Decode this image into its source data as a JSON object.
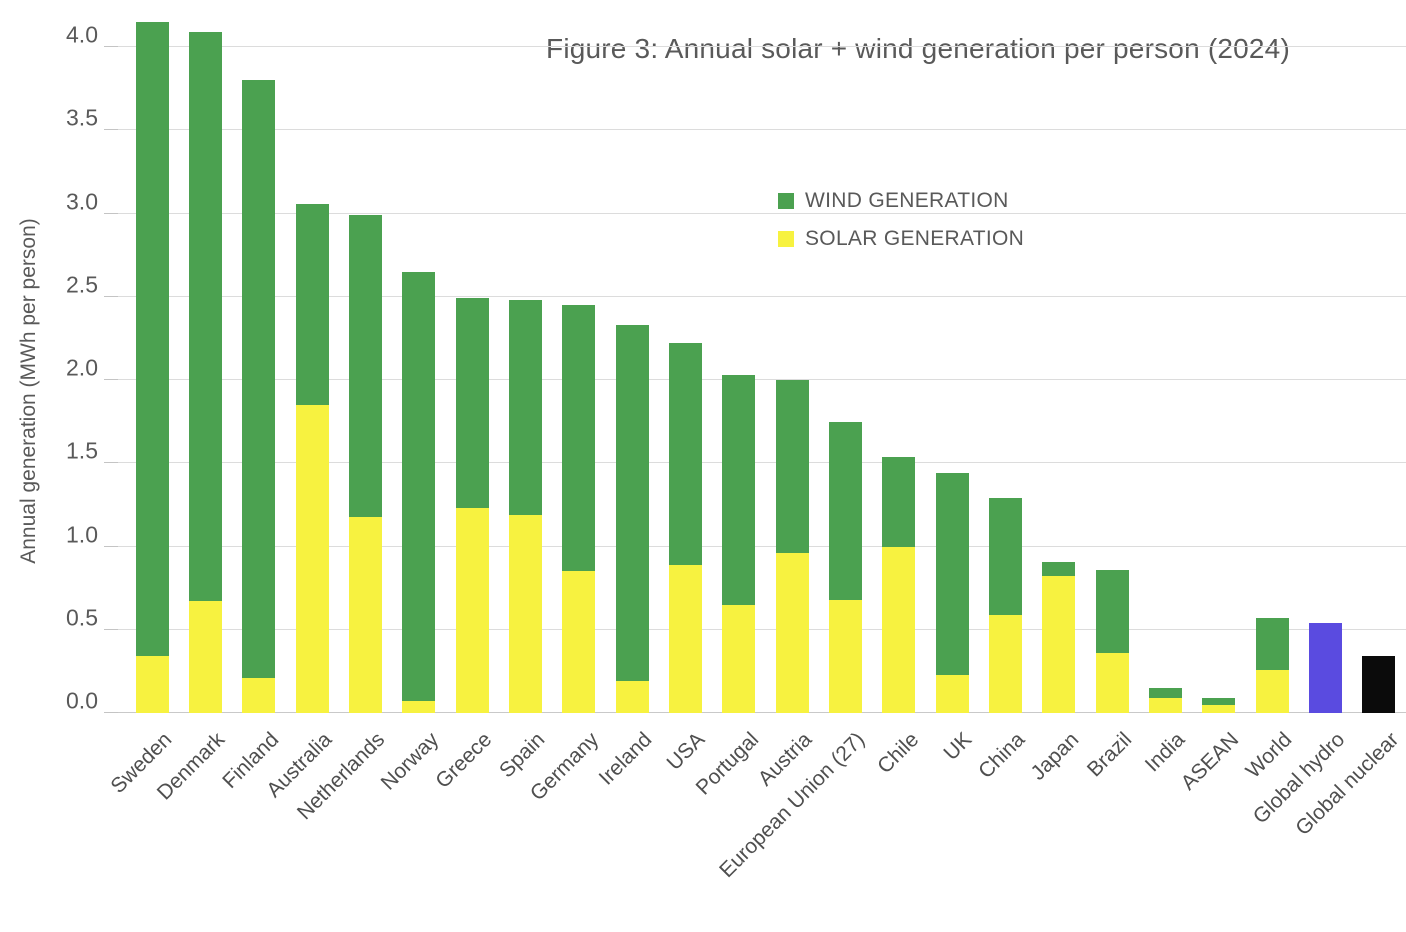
{
  "chart_data": {
    "type": "bar",
    "stacked": true,
    "title": "Figure 3: Annual solar + wind generation per person (2024)",
    "xlabel": "",
    "ylabel": "Annual generation (MWh per person)",
    "ylim": [
      0,
      4.25
    ],
    "grid": true,
    "legend_position": "upper-middle-right",
    "ytick_labels": [
      "0.0",
      "0.5",
      "1.0",
      "1.5",
      "2.0",
      "2.5",
      "3.0",
      "3.5",
      "4.0"
    ],
    "series": [
      {
        "name": "WIND GENERATION",
        "color": "#4BA150"
      },
      {
        "name": "SOLAR GENERATION",
        "color": "#F7F240"
      }
    ],
    "special_colors": {
      "global_hydro": "#5A4BE0",
      "global_nuclear": "#0B0B0B"
    },
    "bars": [
      {
        "category": "Sweden",
        "solar": 0.34,
        "wind": 3.81,
        "total": 4.15
      },
      {
        "category": "Denmark",
        "solar": 0.67,
        "wind": 3.42,
        "total": 4.09
      },
      {
        "category": "Finland",
        "solar": 0.21,
        "wind": 3.59,
        "total": 3.8
      },
      {
        "category": "Australia",
        "solar": 1.85,
        "wind": 1.21,
        "total": 3.06
      },
      {
        "category": "Netherlands",
        "solar": 1.18,
        "wind": 1.81,
        "total": 2.99
      },
      {
        "category": "Norway",
        "solar": 0.07,
        "wind": 2.58,
        "total": 2.65
      },
      {
        "category": "Greece",
        "solar": 1.23,
        "wind": 1.26,
        "total": 2.49
      },
      {
        "category": "Spain",
        "solar": 1.19,
        "wind": 1.29,
        "total": 2.48
      },
      {
        "category": "Germany",
        "solar": 0.85,
        "wind": 1.6,
        "total": 2.45
      },
      {
        "category": "Ireland",
        "solar": 0.19,
        "wind": 2.14,
        "total": 2.33
      },
      {
        "category": "USA",
        "solar": 0.89,
        "wind": 1.33,
        "total": 2.22
      },
      {
        "category": "Portugal",
        "solar": 0.65,
        "wind": 1.38,
        "total": 2.03
      },
      {
        "category": "Austria",
        "solar": 0.96,
        "wind": 1.04,
        "total": 2.0
      },
      {
        "category": "European Union (27)",
        "solar": 0.68,
        "wind": 1.07,
        "total": 1.75
      },
      {
        "category": "Chile",
        "solar": 1.0,
        "wind": 0.54,
        "total": 1.54
      },
      {
        "category": "UK",
        "solar": 0.23,
        "wind": 1.21,
        "total": 1.44
      },
      {
        "category": "China",
        "solar": 0.59,
        "wind": 0.7,
        "total": 1.29
      },
      {
        "category": "Japan",
        "solar": 0.82,
        "wind": 0.09,
        "total": 0.91
      },
      {
        "category": "Brazil",
        "solar": 0.36,
        "wind": 0.5,
        "total": 0.86
      },
      {
        "category": "India",
        "solar": 0.09,
        "wind": 0.06,
        "total": 0.15
      },
      {
        "category": "ASEAN",
        "solar": 0.05,
        "wind": 0.04,
        "total": 0.09
      },
      {
        "category": "World",
        "solar": 0.26,
        "wind": 0.31,
        "total": 0.57
      },
      {
        "category": "Global hydro",
        "value": 0.54,
        "color": "#5A4BE0",
        "total": 0.54
      },
      {
        "category": "Global nuclear",
        "value": 0.34,
        "color": "#0B0B0B",
        "total": 0.34
      }
    ]
  }
}
